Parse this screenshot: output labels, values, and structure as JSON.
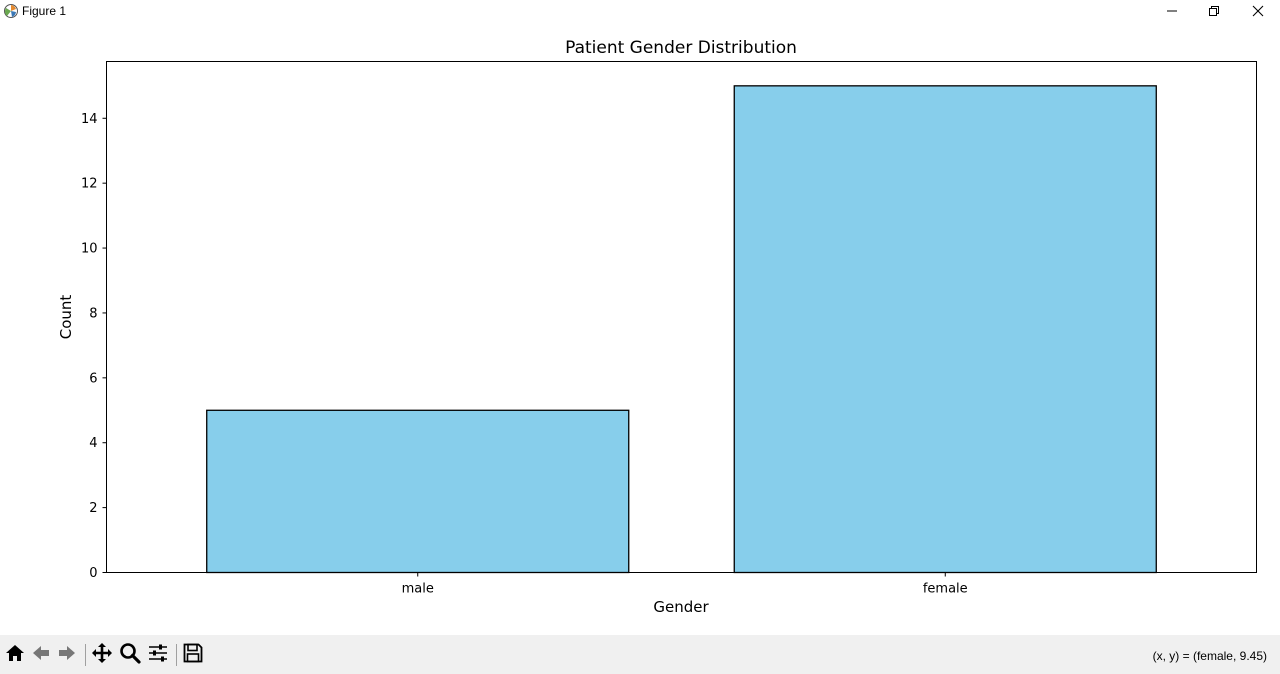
{
  "window": {
    "title": "Figure 1",
    "icon": "matplotlib-icon",
    "controls": [
      "minimize-icon",
      "restore-icon",
      "close-icon"
    ]
  },
  "toolbar": {
    "buttons": [
      "home-icon",
      "back-icon",
      "forward-icon",
      "pan-icon",
      "zoom-icon",
      "configure-subplots-icon",
      "save-icon"
    ],
    "coordinates": "(x, y) = (female, 9.45)"
  },
  "chart_data": {
    "type": "bar",
    "title": "Patient Gender Distribution",
    "xlabel": "Gender",
    "ylabel": "Count",
    "categories": [
      "male",
      "female"
    ],
    "values": [
      5,
      15
    ],
    "ylim": [
      0,
      15.75
    ],
    "yticks": [
      0,
      2,
      4,
      6,
      8,
      10,
      12,
      14
    ],
    "bar_color": "#87ceeb",
    "edge_color": "#000000",
    "grid": false,
    "legend": "none"
  }
}
